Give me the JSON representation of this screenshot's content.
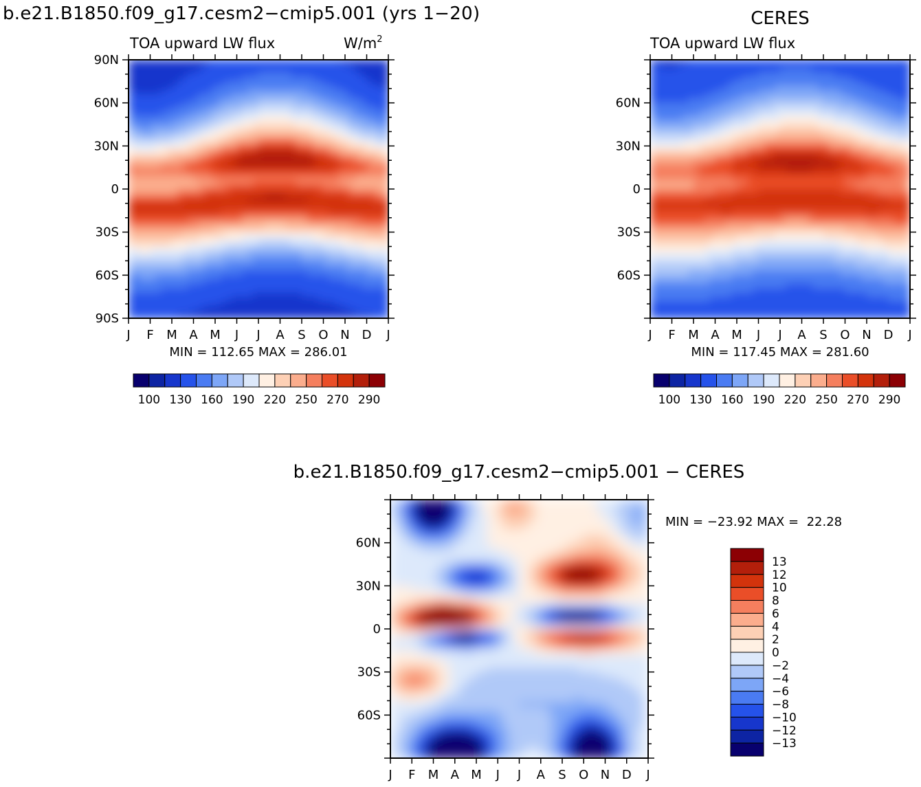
{
  "colors": {
    "abs_scale": [
      "#08006e",
      "#0d24a3",
      "#1736cc",
      "#2552ea",
      "#4a7bf2",
      "#7da6f7",
      "#b0c9f8",
      "#dde9fb",
      "#fff0e3",
      "#fdd0b5",
      "#fbad8d",
      "#f57f5e",
      "#ea4e28",
      "#d3330c",
      "#b31f0b",
      "#8c0004"
    ],
    "diff_scale": [
      "#08006e",
      "#0d24a3",
      "#1736cc",
      "#2552ea",
      "#4a7bf2",
      "#7da6f7",
      "#b0c9f8",
      "#dde9fb",
      "#fff0e3",
      "#fdd0b5",
      "#fbad8d",
      "#f57f5e",
      "#ea4e28",
      "#d3330c",
      "#b31f0b",
      "#8c0004"
    ]
  },
  "chart_data": [
    {
      "type": "heatmap",
      "panel": "model",
      "title": "b.e21.B1850.f09_g17.cesm2−cmip5.001 (yrs 1−20)",
      "subtitle_left": "TOA upward LW flux",
      "units_label": "W/m",
      "units_power": "2",
      "x_tick_labels": [
        "J",
        "F",
        "M",
        "A",
        "M",
        "J",
        "J",
        "A",
        "S",
        "O",
        "N",
        "D",
        "J"
      ],
      "y_tick_labels": [
        "90N",
        "60N",
        "30N",
        "0",
        "30S",
        "60S",
        "90S"
      ],
      "y_range": [
        -90,
        90
      ],
      "stats": "MIN = 112.65 MAX = 286.01",
      "min": 112.65,
      "max": 286.01,
      "levels": [
        100,
        115,
        130,
        145,
        160,
        175,
        190,
        205,
        220,
        235,
        250,
        260,
        270,
        280,
        290
      ],
      "colorbar_labels": [
        "100",
        "130",
        "160",
        "190",
        "220",
        "250",
        "270",
        "290"
      ]
    },
    {
      "type": "heatmap",
      "panel": "obs",
      "title": "CERES",
      "subtitle_left": "TOA upward LW flux",
      "x_tick_labels": [
        "J",
        "F",
        "M",
        "A",
        "M",
        "J",
        "J",
        "A",
        "S",
        "O",
        "N",
        "D",
        "J"
      ],
      "y_tick_labels": [
        "60N",
        "30N",
        "0",
        "30S",
        "60S"
      ],
      "y_range": [
        -90,
        90
      ],
      "stats": "MIN = 117.45 MAX = 281.60",
      "min": 117.45,
      "max": 281.6,
      "levels": [
        100,
        115,
        130,
        145,
        160,
        175,
        190,
        205,
        220,
        235,
        250,
        260,
        270,
        280,
        290
      ],
      "colorbar_labels": [
        "100",
        "130",
        "160",
        "190",
        "220",
        "250",
        "270",
        "290"
      ]
    },
    {
      "type": "heatmap",
      "panel": "difference",
      "title": "b.e21.B1850.f09_g17.cesm2−cmip5.001 − CERES",
      "x_tick_labels": [
        "J",
        "F",
        "M",
        "A",
        "M",
        "J",
        "J",
        "A",
        "S",
        "O",
        "N",
        "D",
        "J"
      ],
      "y_tick_labels": [
        "60N",
        "30N",
        "0",
        "30S",
        "60S"
      ],
      "y_range": [
        -90,
        90
      ],
      "stats": "MIN = −23.92 MAX =  22.28",
      "min": -23.92,
      "max": 22.28,
      "levels": [
        -13,
        -12,
        -10,
        -8,
        -6,
        -4,
        -2,
        0,
        2,
        4,
        6,
        8,
        10,
        12,
        13
      ],
      "colorbar_labels": [
        "13",
        "12",
        "10",
        "8",
        "6",
        "4",
        "2",
        "0",
        "−2",
        "−4",
        "−6",
        "−8",
        "−10",
        "−12",
        "−13"
      ]
    }
  ]
}
